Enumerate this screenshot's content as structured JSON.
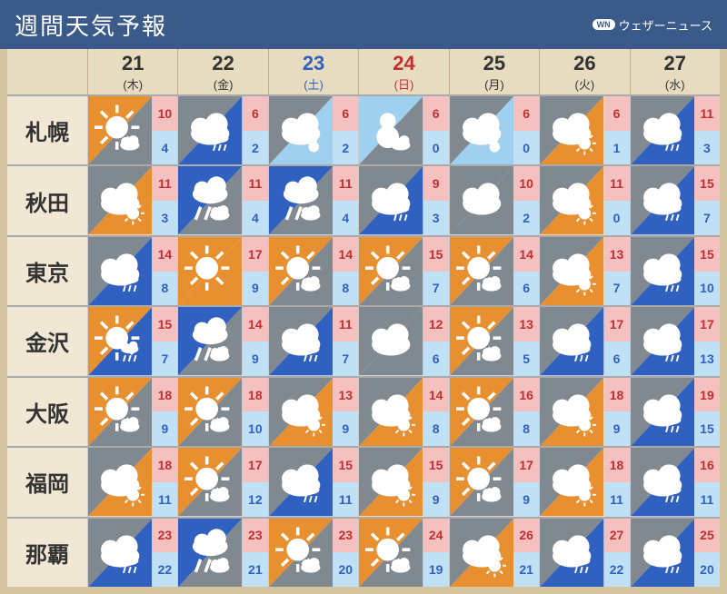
{
  "title": "週間天気予報",
  "brand": "ウェザーニュース",
  "brand_badge": "WN",
  "colors": {
    "header_bg": "#3a5a8a",
    "orange": "#e89030",
    "gray": "#808890",
    "blue": "#3060c0",
    "white": "#ffffff",
    "lightblue": "#a0d0f0"
  },
  "days": [
    {
      "num": "21",
      "wk": "(木)",
      "cls": "weekday"
    },
    {
      "num": "22",
      "wk": "(金)",
      "cls": "weekday"
    },
    {
      "num": "23",
      "wk": "(土)",
      "cls": "weekend-sat"
    },
    {
      "num": "24",
      "wk": "(日)",
      "cls": "weekend-sun"
    },
    {
      "num": "25",
      "wk": "(月)",
      "cls": "weekday"
    },
    {
      "num": "26",
      "wk": "(火)",
      "cls": "weekday"
    },
    {
      "num": "27",
      "wk": "(水)",
      "cls": "weekday"
    }
  ],
  "cities": [
    {
      "name": "札幌",
      "cells": [
        {
          "w": "sun-cloud",
          "hi": 10,
          "lo": 4
        },
        {
          "w": "cloud-rain",
          "hi": 6,
          "lo": 2
        },
        {
          "w": "cloud-snow",
          "hi": 6,
          "lo": 2
        },
        {
          "w": "snow-cloud",
          "hi": 6,
          "lo": 0
        },
        {
          "w": "cloud-snow",
          "hi": 6,
          "lo": 0
        },
        {
          "w": "cloud-sun",
          "hi": 6,
          "lo": 1
        },
        {
          "w": "cloud-rain",
          "hi": 11,
          "lo": 3
        }
      ]
    },
    {
      "name": "秋田",
      "cells": [
        {
          "w": "cloud-sun",
          "hi": 11,
          "lo": 3
        },
        {
          "w": "rain-cloud",
          "hi": 11,
          "lo": 4
        },
        {
          "w": "rain-cloud",
          "hi": 11,
          "lo": 4
        },
        {
          "w": "cloud-rain",
          "hi": 9,
          "lo": 3
        },
        {
          "w": "cloud",
          "hi": 10,
          "lo": 2
        },
        {
          "w": "cloud-sun",
          "hi": 11,
          "lo": 0
        },
        {
          "w": "cloud-rain",
          "hi": 15,
          "lo": 7
        }
      ]
    },
    {
      "name": "東京",
      "cells": [
        {
          "w": "cloud-rain",
          "hi": 14,
          "lo": 8
        },
        {
          "w": "sun",
          "hi": 17,
          "lo": 9
        },
        {
          "w": "sun-cloud",
          "hi": 14,
          "lo": 8
        },
        {
          "w": "sun-cloud",
          "hi": 15,
          "lo": 7
        },
        {
          "w": "sun-cloud",
          "hi": 14,
          "lo": 6
        },
        {
          "w": "cloud-sun",
          "hi": 13,
          "lo": 7
        },
        {
          "w": "cloud-rain",
          "hi": 15,
          "lo": 10
        }
      ]
    },
    {
      "name": "金沢",
      "cells": [
        {
          "w": "sun-rain",
          "hi": 15,
          "lo": 7
        },
        {
          "w": "rain-cloud",
          "hi": 14,
          "lo": 9
        },
        {
          "w": "cloud-rain",
          "hi": 11,
          "lo": 7
        },
        {
          "w": "cloud",
          "hi": 12,
          "lo": 6
        },
        {
          "w": "sun-cloud",
          "hi": 13,
          "lo": 5
        },
        {
          "w": "cloud-rain",
          "hi": 17,
          "lo": 6
        },
        {
          "w": "cloud-rain",
          "hi": 17,
          "lo": 13
        }
      ]
    },
    {
      "name": "大阪",
      "cells": [
        {
          "w": "sun-cloud",
          "hi": 18,
          "lo": 9
        },
        {
          "w": "sun-cloud",
          "hi": 18,
          "lo": 10
        },
        {
          "w": "cloud-sun",
          "hi": 13,
          "lo": 9
        },
        {
          "w": "cloud-sun",
          "hi": 14,
          "lo": 8
        },
        {
          "w": "sun-cloud",
          "hi": 16,
          "lo": 8
        },
        {
          "w": "cloud-sun",
          "hi": 18,
          "lo": 9
        },
        {
          "w": "cloud-rain",
          "hi": 19,
          "lo": 15
        }
      ]
    },
    {
      "name": "福岡",
      "cells": [
        {
          "w": "cloud-sun",
          "hi": 18,
          "lo": 11
        },
        {
          "w": "sun-cloud",
          "hi": 17,
          "lo": 12
        },
        {
          "w": "cloud-rain",
          "hi": 15,
          "lo": 11
        },
        {
          "w": "cloud-sun",
          "hi": 15,
          "lo": 9
        },
        {
          "w": "sun-cloud",
          "hi": 17,
          "lo": 9
        },
        {
          "w": "cloud-sun",
          "hi": 18,
          "lo": 11
        },
        {
          "w": "cloud-rain",
          "hi": 16,
          "lo": 11
        }
      ]
    },
    {
      "name": "那覇",
      "cells": [
        {
          "w": "cloud-rain",
          "hi": 23,
          "lo": 22
        },
        {
          "w": "rain-cloud",
          "hi": 23,
          "lo": 21
        },
        {
          "w": "sun-cloud",
          "hi": 23,
          "lo": 20
        },
        {
          "w": "sun-cloud",
          "hi": 24,
          "lo": 19
        },
        {
          "w": "cloud-sun",
          "hi": 26,
          "lo": 21
        },
        {
          "w": "cloud-rain",
          "hi": 27,
          "lo": 22
        },
        {
          "w": "cloud-rain",
          "hi": 25,
          "lo": 20
        }
      ]
    }
  ]
}
